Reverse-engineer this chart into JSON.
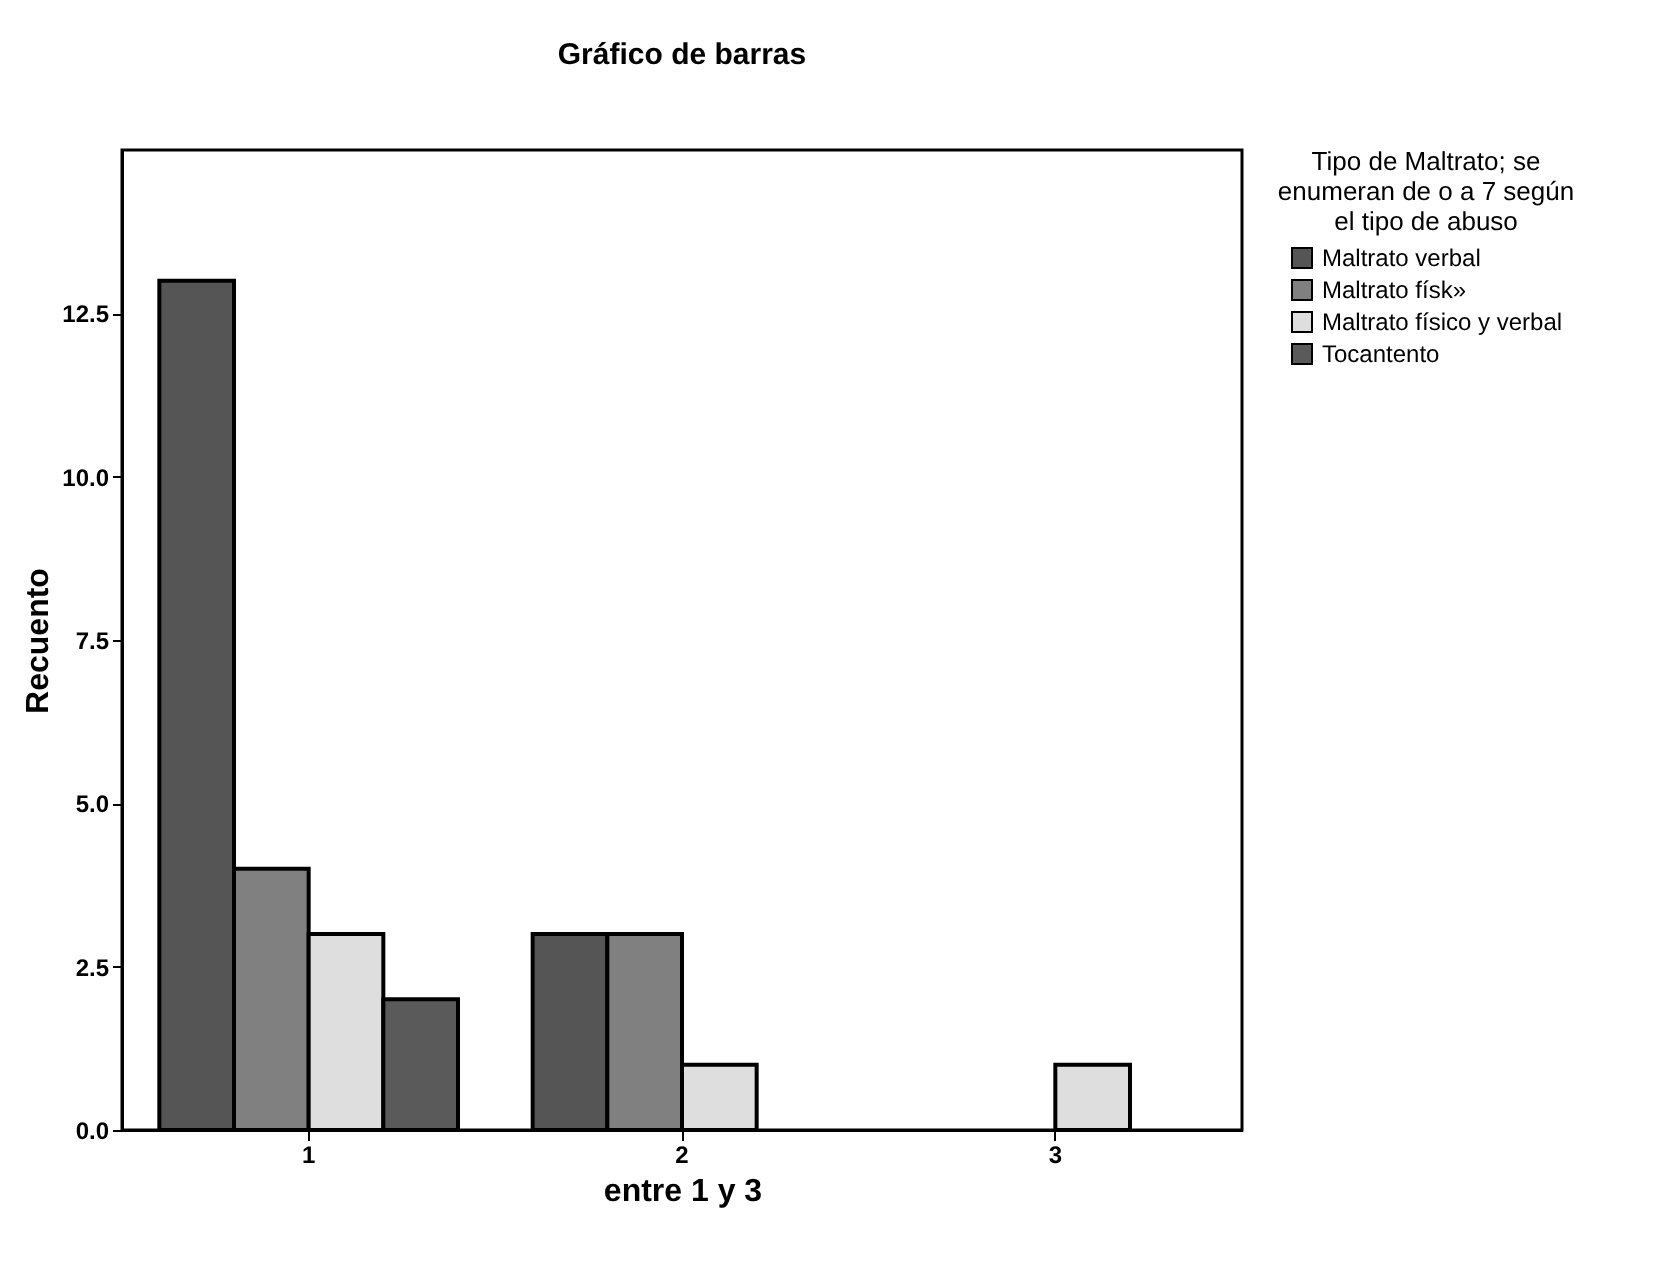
{
  "chart_data": {
    "type": "bar",
    "title": "Gráfico de barras",
    "xlabel": "entre 1 y 3",
    "ylabel": "Recuento",
    "legend_title": "Tipo de Maltrato; se enumeran de o a 7 según el tipo de abuso",
    "legend": "top right",
    "grid": false,
    "categories": [
      "1",
      "2",
      "3"
    ],
    "series": [
      {
        "name": "Maltrato verbal",
        "color": "#555555",
        "values": [
          13,
          3,
          null
        ]
      },
      {
        "name": "Maltrato físk»",
        "color": "#808080",
        "values": [
          4,
          3,
          null
        ]
      },
      {
        "name": "Maltrato físico y verbal",
        "color": "#dedede",
        "values": [
          3,
          1,
          1
        ]
      },
      {
        "name": "Tocantento",
        "color": "#5a5a5a",
        "values": [
          2,
          null,
          null
        ]
      }
    ],
    "ylim": [
      0,
      15
    ],
    "yticks": [
      {
        "value": 0,
        "label": "0.0"
      },
      2.5,
      {
        "value": 5,
        "label": "5.0"
      },
      7.5,
      {
        "value": 10,
        "label": "10.0"
      },
      12.5
    ]
  }
}
